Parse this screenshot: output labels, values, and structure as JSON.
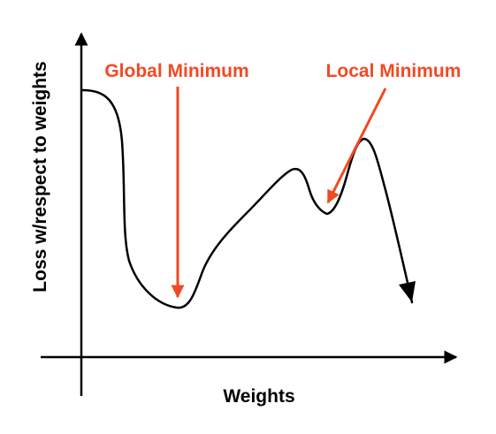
{
  "diagram": {
    "y_axis_label": "Loss w/respect to weights",
    "x_axis_label": "Weights",
    "annotations": {
      "global_minimum": "Global Minimum",
      "local_minimum": "Local Minimum"
    },
    "colors": {
      "curve": "#000000",
      "axes": "#000000",
      "annotation": "#f04a23"
    }
  }
}
